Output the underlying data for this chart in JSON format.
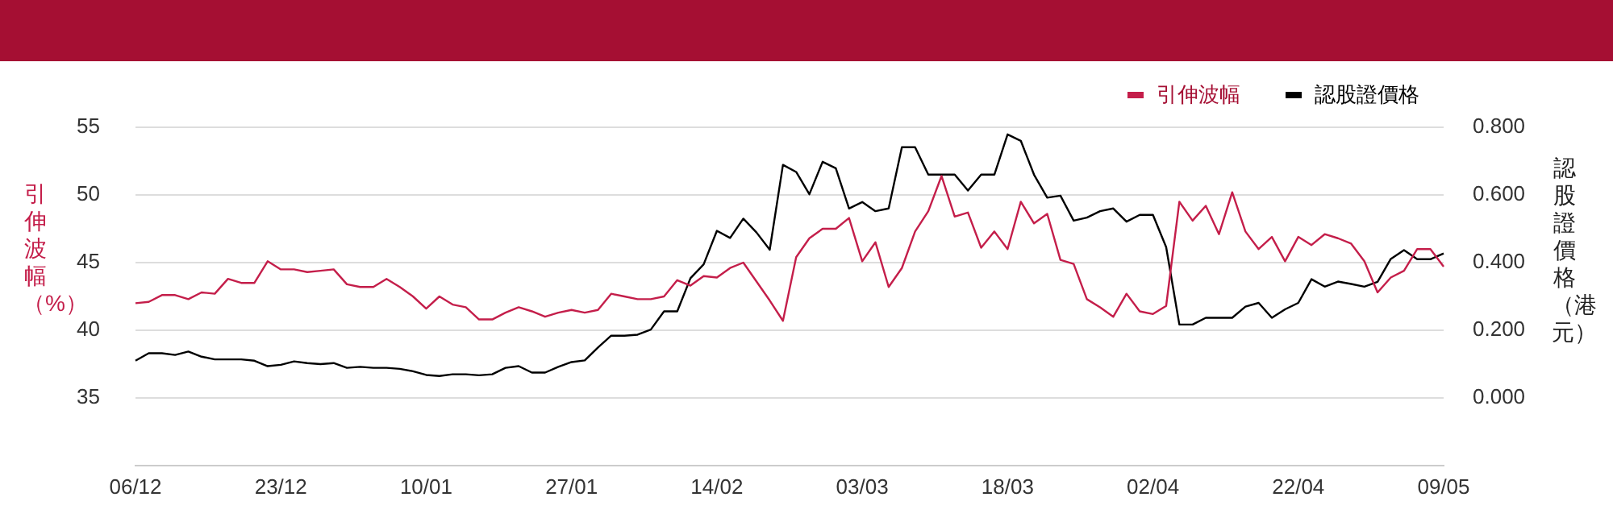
{
  "chart_data": {
    "type": "line",
    "categories": [
      "06/12",
      null,
      null,
      null,
      null,
      null,
      null,
      null,
      null,
      null,
      null,
      "23/12",
      null,
      null,
      null,
      null,
      null,
      null,
      null,
      null,
      null,
      null,
      "10/01",
      null,
      null,
      null,
      null,
      null,
      null,
      null,
      null,
      null,
      null,
      "27/01",
      null,
      null,
      null,
      null,
      null,
      null,
      null,
      null,
      null,
      null,
      "14/02",
      null,
      null,
      null,
      null,
      null,
      null,
      null,
      null,
      null,
      null,
      "03/03",
      null,
      null,
      null,
      null,
      null,
      null,
      null,
      null,
      null,
      null,
      "18/03",
      null,
      null,
      null,
      null,
      null,
      null,
      null,
      null,
      null,
      null,
      "02/04",
      null,
      null,
      null,
      null,
      null,
      null,
      null,
      null,
      null,
      null,
      "22/04",
      null,
      null,
      null,
      null,
      null,
      null,
      null,
      null,
      null,
      null,
      "09/05"
    ],
    "series": [
      {
        "name": "引伸波幅",
        "color": "#c41e4a",
        "values": [
          42.0,
          42.1,
          42.6,
          42.6,
          42.3,
          42.8,
          42.7,
          43.8,
          43.5,
          43.5,
          45.1,
          44.5,
          44.5,
          44.3,
          44.4,
          44.5,
          43.4,
          43.2,
          43.2,
          43.8,
          43.2,
          42.5,
          41.6,
          42.5,
          41.9,
          41.7,
          40.8,
          40.8,
          41.3,
          41.7,
          41.4,
          41.0,
          41.3,
          41.5,
          41.3,
          41.5,
          42.7,
          42.5,
          42.3,
          42.3,
          42.5,
          43.7,
          43.3,
          44.0,
          43.9,
          44.6,
          45.0,
          43.6,
          42.2,
          40.7,
          45.4,
          46.8,
          47.5,
          47.5,
          48.3,
          45.1,
          46.5,
          43.2,
          44.6,
          47.3,
          48.8,
          51.4,
          48.4,
          48.7,
          46.1,
          47.3,
          46.0,
          49.5,
          47.9,
          48.6,
          45.2,
          44.9,
          42.3,
          41.7,
          41.0,
          42.7,
          41.4,
          41.2,
          41.8,
          49.5,
          48.1,
          49.2,
          47.1,
          50.2,
          47.3,
          46.0,
          46.9,
          45.1,
          46.9,
          46.3,
          47.1,
          46.8,
          46.4,
          45.1,
          42.8,
          43.9,
          44.4,
          46.0,
          46.0,
          44.7
        ]
      },
      {
        "name": "認股證價格",
        "color": "#000000",
        "axis": "y2",
        "values": [
          0.11,
          0.132,
          0.132,
          0.127,
          0.137,
          0.122,
          0.114,
          0.114,
          0.114,
          0.11,
          0.094,
          0.098,
          0.108,
          0.103,
          0.1,
          0.103,
          0.089,
          0.092,
          0.089,
          0.089,
          0.086,
          0.079,
          0.068,
          0.065,
          0.07,
          0.07,
          0.067,
          0.07,
          0.089,
          0.094,
          0.075,
          0.075,
          0.092,
          0.106,
          0.111,
          0.149,
          0.184,
          0.184,
          0.187,
          0.202,
          0.256,
          0.256,
          0.354,
          0.395,
          0.494,
          0.473,
          0.53,
          0.489,
          0.438,
          0.689,
          0.668,
          0.602,
          0.698,
          0.679,
          0.56,
          0.579,
          0.552,
          0.56,
          0.741,
          0.741,
          0.66,
          0.66,
          0.66,
          0.613,
          0.66,
          0.66,
          0.779,
          0.76,
          0.66,
          0.592,
          0.598,
          0.524,
          0.533,
          0.552,
          0.56,
          0.521,
          0.541,
          0.541,
          0.446,
          0.217,
          0.217,
          0.237,
          0.237,
          0.237,
          0.27,
          0.281,
          0.237,
          0.262,
          0.281,
          0.351,
          0.329,
          0.344,
          0.337,
          0.329,
          0.343,
          0.411,
          0.437,
          0.41,
          0.41,
          0.427
        ]
      }
    ],
    "ylabel": "引伸波幅（%）",
    "y2label": "認股證價格（港元）",
    "ylim": [
      30,
      55
    ],
    "yticks": [
      35,
      40,
      45,
      50,
      55
    ],
    "y2lim": [
      -0.2,
      0.8
    ],
    "y2ticks": [
      {
        "value": 0,
        "label": "0.000"
      },
      {
        "value": 0.2,
        "label": "0.200"
      },
      {
        "value": 0.4,
        "label": "0.400"
      },
      {
        "value": 0.6,
        "label": "0.600"
      },
      {
        "value": 0.8,
        "label": "0.800"
      }
    ],
    "grid": "y",
    "legend": "top right",
    "marker": "none",
    "line_style": "solid"
  }
}
